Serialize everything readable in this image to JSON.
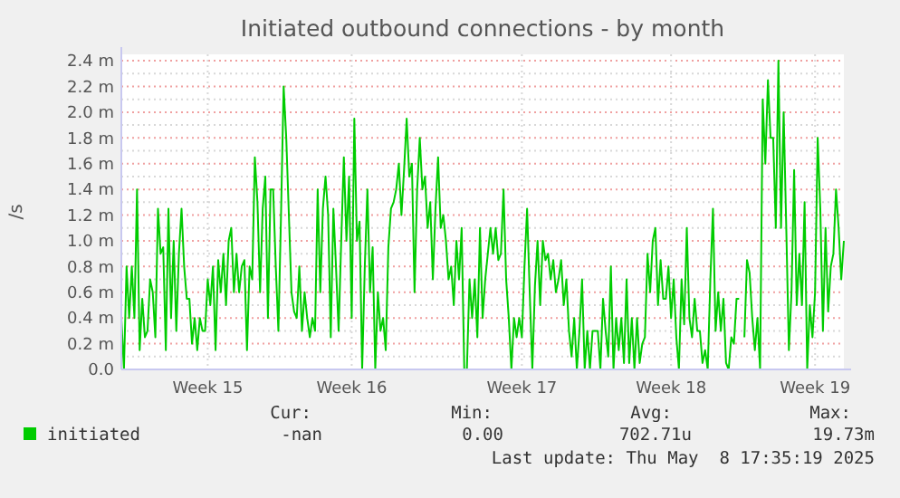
{
  "chart_data": {
    "type": "line",
    "title": "Initiated outbound connections - by month",
    "ylabel": "/s",
    "categories": [
      null,
      null,
      null,
      null,
      null,
      null,
      null,
      null,
      null,
      null,
      null,
      null,
      null,
      null,
      null,
      null,
      null,
      null,
      null,
      null,
      null,
      null,
      null,
      null,
      null,
      null,
      null,
      null,
      null,
      null,
      null,
      null,
      null,
      "Week 15",
      null,
      null,
      null,
      null,
      null,
      null,
      null,
      null,
      null,
      null,
      null,
      null,
      null,
      null,
      null,
      null,
      null,
      null,
      null,
      null,
      null,
      null,
      null,
      null,
      null,
      null,
      null,
      null,
      null,
      null,
      null,
      null,
      null,
      null,
      null,
      null,
      null,
      null,
      null,
      null,
      null,
      null,
      null,
      null,
      null,
      null,
      null,
      null,
      null,
      null,
      null,
      null,
      null,
      null,
      "Week 16",
      null,
      null,
      null,
      null,
      null,
      null,
      null,
      null,
      null,
      null,
      null,
      null,
      null,
      null,
      null,
      null,
      null,
      null,
      null,
      null,
      null,
      null,
      null,
      null,
      null,
      null,
      null,
      null,
      null,
      null,
      null,
      null,
      null,
      null,
      null,
      null,
      null,
      null,
      null,
      null,
      null,
      null,
      null,
      null,
      null,
      null,
      null,
      null,
      null,
      null,
      null,
      null,
      null,
      null,
      null,
      null,
      null,
      null,
      null,
      null,
      null,
      null,
      null,
      null,
      "Week 17",
      null,
      null,
      null,
      null,
      null,
      null,
      null,
      null,
      null,
      null,
      null,
      null,
      null,
      null,
      null,
      null,
      null,
      null,
      null,
      null,
      null,
      null,
      null,
      null,
      null,
      null,
      null,
      null,
      null,
      null,
      null,
      null,
      null,
      null,
      null,
      null,
      null,
      null,
      null,
      null,
      null,
      null,
      null,
      null,
      null,
      null,
      null,
      null,
      null,
      null,
      null,
      null,
      null,
      null,
      null,
      null,
      "Week 18",
      null,
      null,
      null,
      null,
      null,
      null,
      null,
      null,
      null,
      null,
      null,
      null,
      null,
      null,
      null,
      null,
      null,
      null,
      null,
      null,
      null,
      null,
      null,
      null,
      null,
      null,
      null,
      null,
      null,
      null,
      null,
      null,
      null,
      null,
      null,
      null,
      null,
      null,
      null,
      null,
      null,
      null,
      null,
      null,
      null,
      null,
      null,
      null,
      null,
      null,
      null,
      null,
      null,
      null,
      "Week 19",
      null,
      null,
      null,
      null,
      null,
      null,
      null,
      null,
      null,
      null,
      null
    ],
    "ylim": [
      0,
      2.45
    ],
    "yticks": [
      {
        "value": 0,
        "label": "0.0"
      },
      {
        "value": 0.1,
        "label": null
      },
      {
        "value": 0.2,
        "label": "0.2 m"
      },
      {
        "value": 0.3,
        "label": null
      },
      {
        "value": 0.4,
        "label": "0.4 m"
      },
      {
        "value": 0.5,
        "label": null
      },
      {
        "value": 0.6,
        "label": "0.6 m"
      },
      {
        "value": 0.7,
        "label": null
      },
      {
        "value": 0.8,
        "label": "0.8 m"
      },
      {
        "value": 0.9,
        "label": null
      },
      {
        "value": 1.0,
        "label": "1.0 m"
      },
      {
        "value": 1.1,
        "label": null
      },
      {
        "value": 1.2,
        "label": "1.2 m"
      },
      {
        "value": 1.3,
        "label": null
      },
      {
        "value": 1.4,
        "label": "1.4 m"
      },
      {
        "value": 1.5,
        "label": null
      },
      {
        "value": 1.6,
        "label": "1.6 m"
      },
      {
        "value": 1.7,
        "label": null
      },
      {
        "value": 1.8,
        "label": "1.8 m"
      },
      {
        "value": 1.9,
        "label": null
      },
      {
        "value": 2.0,
        "label": "2.0 m"
      },
      {
        "value": 2.1,
        "label": null
      },
      {
        "value": 2.2,
        "label": "2.2 m"
      },
      {
        "value": 2.3,
        "label": null
      },
      {
        "value": 2.4,
        "label": "2.4 m"
      }
    ],
    "grid": true,
    "legend": "bottom left",
    "line_style": "solid",
    "annotations": [
      "Cur:",
      "Min:",
      "Avg:",
      "Max:",
      "-nan",
      "0.00",
      "702.71u",
      "19.73m",
      "Last update: Thu May  8 17:35:19 2025"
    ],
    "series": [
      {
        "name": "initiated",
        "color": "#00cc00",
        "values": [
          0.4,
          0.0,
          0.8,
          0.4,
          0.8,
          0.4,
          1.4,
          0.15,
          0.55,
          0.25,
          0.3,
          0.7,
          0.6,
          0.25,
          1.25,
          0.9,
          0.95,
          0.15,
          1.25,
          0.4,
          1.0,
          0.3,
          0.9,
          1.25,
          0.8,
          0.55,
          0.55,
          0.2,
          0.4,
          0.15,
          0.4,
          0.3,
          0.3,
          0.7,
          0.5,
          0.8,
          0.15,
          0.85,
          0.6,
          0.9,
          0.5,
          1.0,
          1.1,
          0.6,
          0.9,
          0.6,
          0.8,
          0.85,
          0.15,
          0.8,
          0.7,
          1.65,
          1.3,
          0.6,
          1.25,
          1.5,
          0.4,
          1.4,
          1.4,
          0.8,
          0.3,
          1.2,
          2.2,
          1.8,
          1.2,
          0.6,
          0.45,
          0.4,
          0.8,
          0.3,
          0.6,
          0.4,
          0.25,
          0.4,
          0.3,
          1.4,
          0.6,
          1.25,
          1.5,
          1.2,
          0.25,
          1.25,
          0.8,
          0.3,
          1.0,
          1.65,
          1.0,
          1.5,
          0.4,
          1.95,
          1.0,
          1.15,
          0.0,
          0.8,
          1.4,
          0.6,
          0.95,
          0.0,
          0.6,
          0.3,
          0.4,
          0.15,
          0.95,
          1.25,
          1.3,
          1.4,
          1.6,
          1.2,
          1.55,
          1.95,
          1.5,
          1.6,
          0.6,
          1.4,
          1.8,
          1.4,
          1.5,
          1.1,
          1.3,
          0.7,
          1.25,
          1.65,
          1.1,
          1.2,
          1.0,
          0.7,
          0.8,
          0.5,
          1.0,
          0.7,
          1.1,
          0.0,
          0.0,
          0.7,
          0.4,
          0.7,
          0.25,
          1.1,
          0.4,
          0.7,
          0.9,
          1.1,
          0.9,
          1.1,
          0.85,
          0.9,
          1.4,
          0.7,
          0.4,
          0.0,
          0.4,
          0.25,
          0.4,
          0.25,
          0.8,
          1.25,
          0.6,
          0.0,
          0.65,
          1.0,
          0.5,
          1.0,
          0.85,
          0.9,
          0.7,
          0.85,
          0.6,
          0.7,
          0.85,
          0.5,
          0.7,
          0.3,
          0.1,
          0.4,
          0.0,
          0.3,
          0.7,
          0.0,
          0.3,
          0.0,
          0.3,
          0.3,
          0.3,
          0.0,
          0.55,
          0.3,
          0.1,
          0.8,
          0.0,
          0.4,
          0.15,
          0.4,
          0.05,
          0.7,
          0.05,
          0.4,
          0.0,
          0.4,
          0.05,
          0.2,
          0.25,
          0.9,
          0.6,
          1.0,
          1.1,
          0.5,
          0.85,
          0.55,
          0.55,
          0.8,
          0.4,
          0.7,
          0.25,
          0.0,
          0.7,
          0.35,
          1.1,
          0.4,
          0.25,
          0.55,
          0.3,
          0.3,
          0.05,
          0.15,
          0.0,
          0.7,
          1.25,
          0.3,
          0.6,
          0.3,
          0.55,
          0.05,
          0.0,
          0.25,
          0.2,
          0.55,
          0.55,
          null,
          0.25,
          0.85,
          0.75,
          0.4,
          0.15,
          0.4,
          0.0,
          2.1,
          1.6,
          2.25,
          1.8,
          1.8,
          1.1,
          2.4,
          1.1,
          2.0,
          1.1,
          0.15,
          0.6,
          1.55,
          0.5,
          0.9,
          0.5,
          1.3,
          0.0,
          0.5,
          0.25,
          0.6,
          1.8,
          1.25,
          0.3,
          1.1,
          0.45,
          0.8,
          0.9,
          1.4,
          1.1,
          0.7,
          1.0
        ]
      }
    ]
  }
}
